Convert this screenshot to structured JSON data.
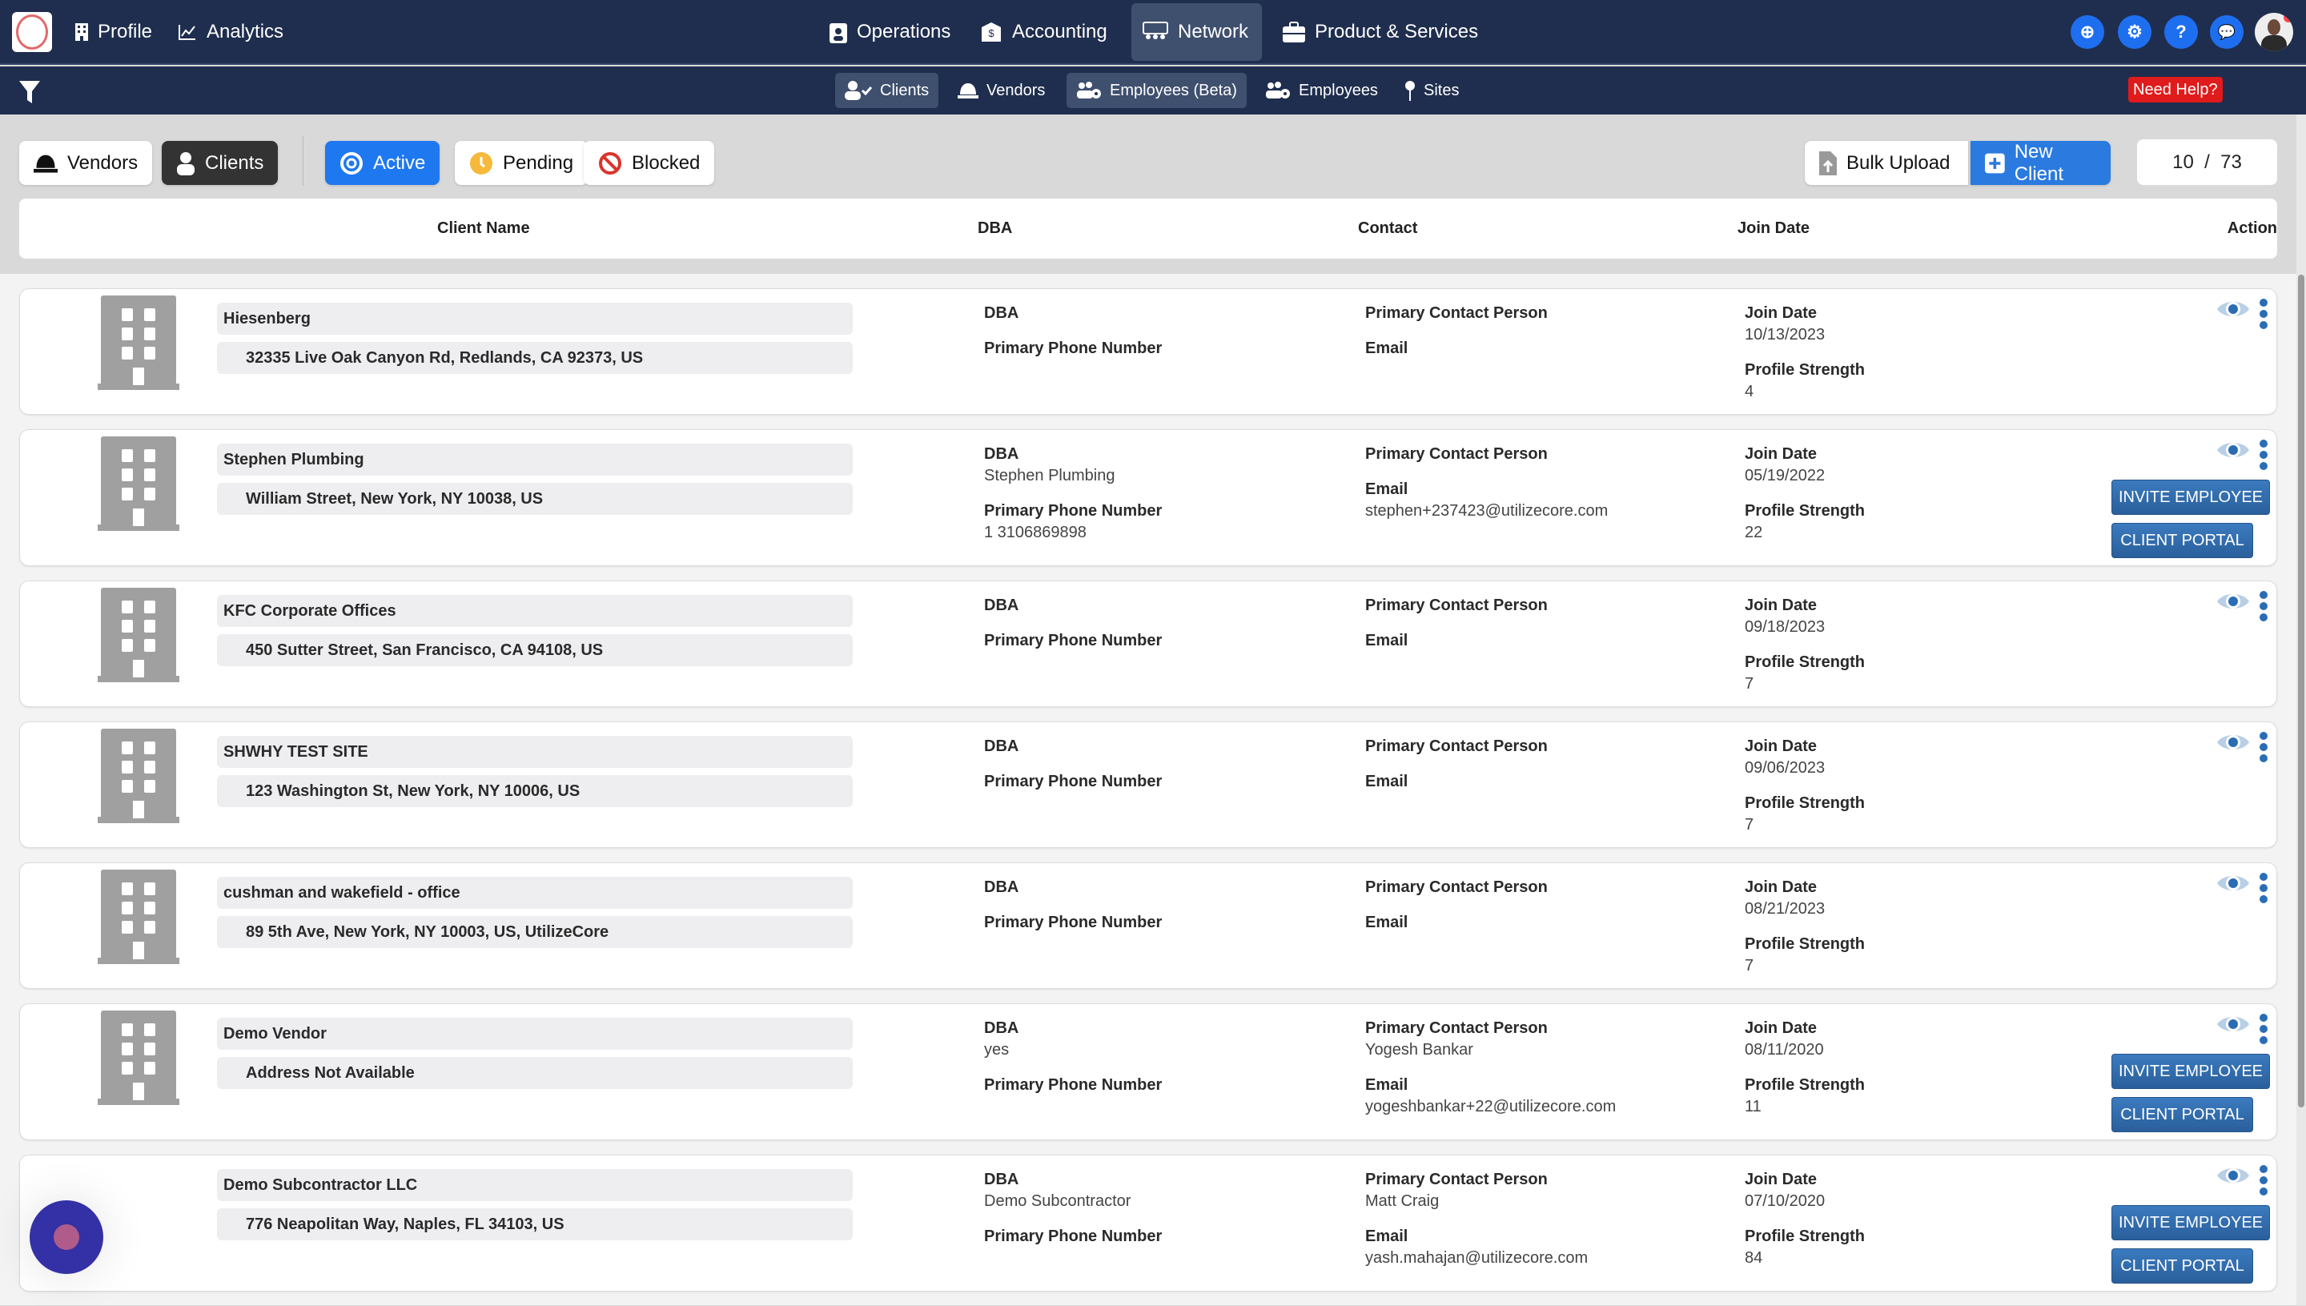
{
  "topnav": {
    "left": [
      {
        "label": "Profile",
        "icon": "building-icon"
      },
      {
        "label": "Analytics",
        "icon": "chart-line-icon"
      }
    ],
    "center": [
      {
        "label": "Operations",
        "icon": "clipboard-user-icon"
      },
      {
        "label": "Accounting",
        "icon": "money-envelope-icon"
      },
      {
        "label": "Network",
        "icon": "network-icon",
        "selected": true
      },
      {
        "label": "Product & Services",
        "icon": "briefcase-icon"
      }
    ],
    "right_icons": [
      {
        "icon": "download-circle-icon",
        "glyph": "⊕"
      },
      {
        "icon": "gear-icon",
        "glyph": "⚙"
      },
      {
        "icon": "help-icon",
        "glyph": "?"
      },
      {
        "icon": "chat-icon",
        "glyph": "💬"
      }
    ]
  },
  "subnav": {
    "items": [
      {
        "label": "Clients",
        "icon": "user-check-icon",
        "selected": true
      },
      {
        "label": "Vendors",
        "icon": "hardhat-icon"
      },
      {
        "label": "Employees (Beta)",
        "icon": "users-gear-icon",
        "selected": true
      },
      {
        "label": "Employees",
        "icon": "users-gear-icon"
      },
      {
        "label": "Sites",
        "icon": "map-pin-icon"
      }
    ],
    "need_help": "Need Help?"
  },
  "filters": {
    "vendors": "Vendors",
    "clients": "Clients",
    "active": "Active",
    "pending": "Pending",
    "blocked": "Blocked"
  },
  "actions": {
    "bulk_upload": "Bulk Upload",
    "new_client": "New Client"
  },
  "pagination": {
    "shown": "10",
    "separator": "/",
    "total": "73"
  },
  "table": {
    "headers": {
      "name": "Client Name",
      "dba": "DBA",
      "contact": "Contact",
      "join": "Join Date",
      "action": "Action"
    },
    "labels": {
      "dba": "DBA",
      "phone": "Primary Phone Number",
      "contact": "Primary Contact Person",
      "email": "Email",
      "join": "Join Date",
      "strength": "Profile Strength",
      "invite": "INVITE EMPLOYEE",
      "portal": "CLIENT PORTAL"
    },
    "rows": [
      {
        "name": "Hiesenberg",
        "address": "32335 Live Oak Canyon Rd, Redlands, CA 92373, US",
        "dba": "",
        "phone": "",
        "contact": "",
        "email": "",
        "join_date": "10/13/2023",
        "profile_strength": "4",
        "buttons": false
      },
      {
        "name": "Stephen Plumbing",
        "address": "William Street, New York, NY 10038, US",
        "dba": "Stephen Plumbing",
        "phone": "1 3106869898",
        "contact": "",
        "email": "stephen+237423@utilizecore.com",
        "join_date": "05/19/2022",
        "profile_strength": "22",
        "buttons": true
      },
      {
        "name": "KFC Corporate Offices",
        "address": "450 Sutter Street, San Francisco, CA 94108, US",
        "dba": "",
        "phone": "",
        "contact": "",
        "email": "",
        "join_date": "09/18/2023",
        "profile_strength": "7",
        "buttons": false
      },
      {
        "name": "SHWHY TEST SITE",
        "address": "123 Washington St, New York, NY 10006, US",
        "dba": "",
        "phone": "",
        "contact": "",
        "email": "",
        "join_date": "09/06/2023",
        "profile_strength": "7",
        "buttons": false
      },
      {
        "name": "cushman and wakefield - office",
        "address": "89 5th Ave, New York, NY 10003, US, UtilizeCore",
        "dba": "",
        "phone": "",
        "contact": "",
        "email": "",
        "join_date": "08/21/2023",
        "profile_strength": "7",
        "buttons": false
      },
      {
        "name": "Demo Vendor",
        "address": "Address Not Available",
        "dba": "yes",
        "phone": "",
        "contact": "Yogesh Bankar",
        "email": "yogeshbankar+22@utilizecore.com",
        "join_date": "08/11/2020",
        "profile_strength": "11",
        "buttons": true
      },
      {
        "name": "Demo Subcontractor LLC",
        "address": "776 Neapolitan Way, Naples, FL 34103, US",
        "dba": "Demo Subcontractor",
        "phone": "",
        "contact": "Matt Craig",
        "email": "yash.mahajan@utilizecore.com",
        "join_date": "07/10/2020",
        "profile_strength": "84",
        "buttons": true
      }
    ]
  },
  "colors": {
    "nav_bg": "#1f2e4e",
    "primary": "#1e78f0",
    "action_button": "#2a6db5",
    "need_help": "#e01b1b"
  }
}
